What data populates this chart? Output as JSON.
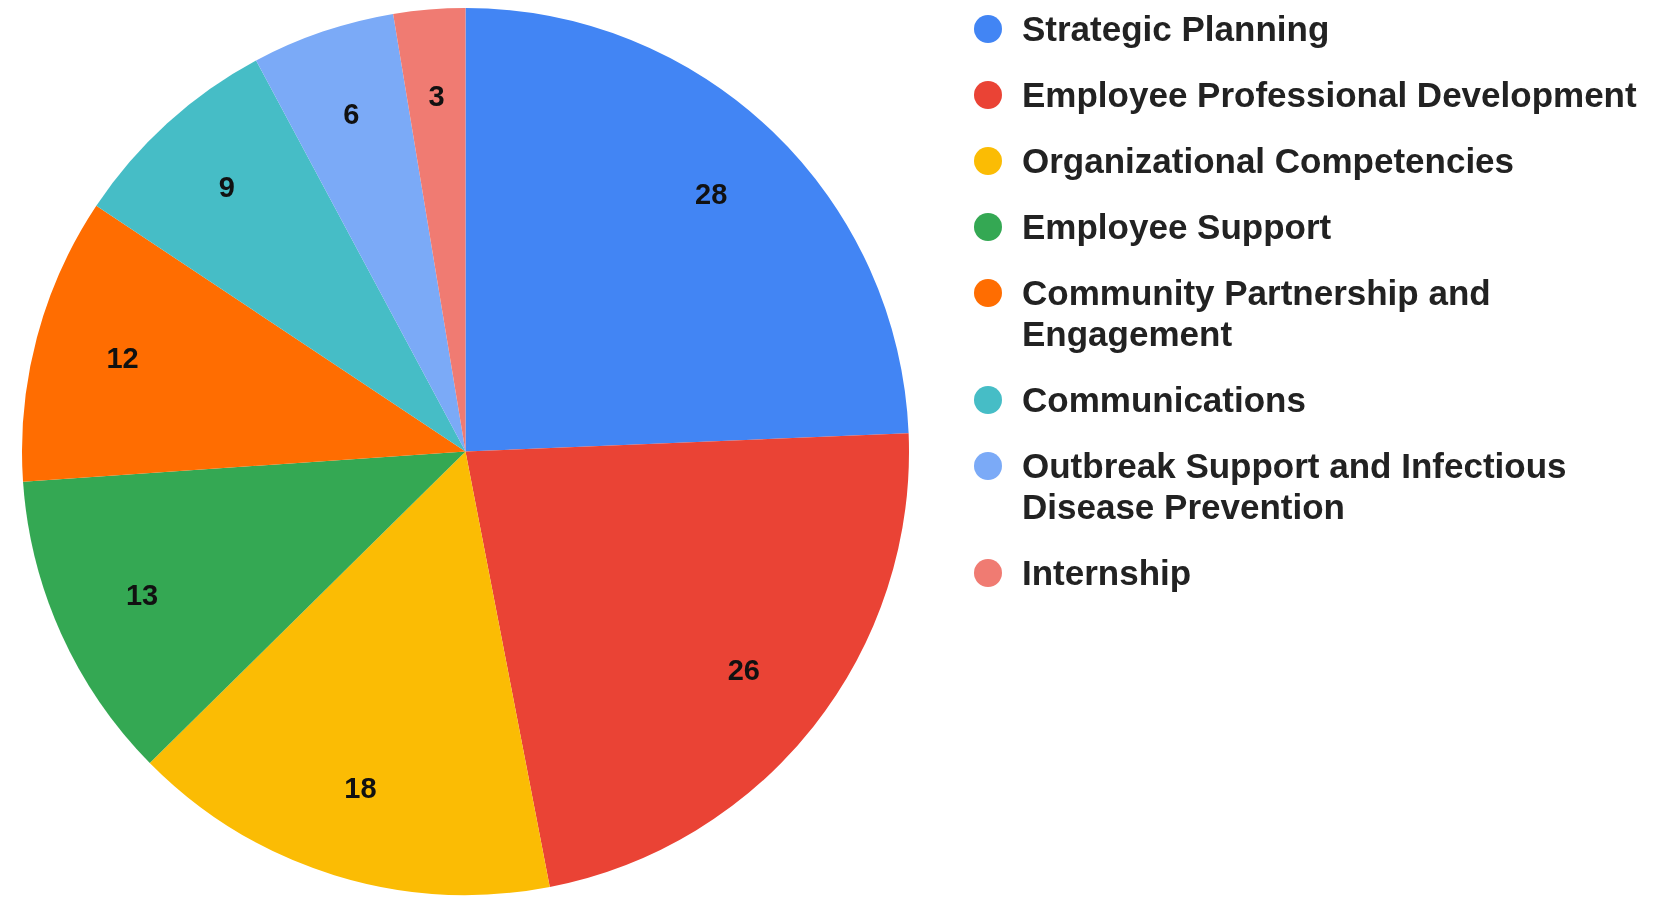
{
  "chart_data": {
    "type": "pie",
    "categories": [
      "Strategic Planning",
      "Employee Professional Development",
      "Organizational Competencies",
      "Employee Support",
      "Community Partnership and Engagement",
      "Communications",
      "Outbreak Support and Infectious Disease Prevention",
      "Internship"
    ],
    "values": [
      28,
      26,
      18,
      13,
      12,
      9,
      6,
      3
    ],
    "colors": [
      "#4285f4",
      "#ea4335",
      "#fbbc04",
      "#34a853",
      "#ff6d01",
      "#46bdc6",
      "#7baaf7",
      "#f07b72"
    ],
    "data_labels": true,
    "legend": "right"
  }
}
